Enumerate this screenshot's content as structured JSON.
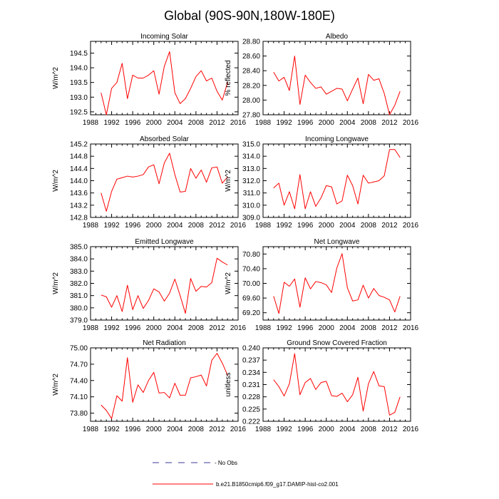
{
  "title": "Global (90S-90N,180W-180E)",
  "years": [
    1990,
    1991,
    1992,
    1993,
    1994,
    1995,
    1996,
    1997,
    1998,
    1999,
    2000,
    2001,
    2002,
    2003,
    2004,
    2005,
    2006,
    2007,
    2008,
    2009,
    2010,
    2011,
    2012,
    2013,
    2014
  ],
  "x_ticks": [
    1988,
    1992,
    1996,
    2000,
    2004,
    2008,
    2012,
    2016
  ],
  "legend": {
    "no_obs": "- No Obs",
    "no_obs_color": "#3a3a9a",
    "case": "b.e21.B1850cmip6.f09_g17.DAMIP-hist-co2.001",
    "case_color": "#ff0000"
  },
  "chart_data": [
    {
      "type": "line",
      "title": "Incoming Solar",
      "ylabel": "W/m^2",
      "xlim": [
        1988,
        2016
      ],
      "ylim": [
        192.4,
        194.9
      ],
      "yticks": [
        192.5,
        193.0,
        193.5,
        194.0,
        194.5
      ],
      "ytick_labels": [
        "192.5",
        "193.0",
        "193.5",
        "194.0",
        "194.5"
      ],
      "series": [
        {
          "color": "#ff0000",
          "values": [
            193.15,
            192.4,
            193.3,
            193.5,
            194.15,
            192.95,
            193.75,
            193.65,
            193.65,
            193.75,
            193.9,
            193.1,
            194.05,
            194.55,
            193.15,
            192.78,
            192.95,
            193.3,
            193.7,
            193.9,
            193.55,
            193.65,
            193.2,
            192.9,
            193.5
          ]
        }
      ]
    },
    {
      "type": "line",
      "title": "Albedo",
      "ylabel": "% reflected",
      "xlim": [
        1988,
        2016
      ],
      "ylim": [
        27.8,
        28.8
      ],
      "yticks": [
        27.8,
        28.0,
        28.2,
        28.4,
        28.6,
        28.8
      ],
      "ytick_labels": [
        "27.80",
        "28.00",
        "28.20",
        "28.40",
        "28.60",
        "28.80"
      ],
      "series": [
        {
          "color": "#ff0000",
          "values": [
            28.38,
            28.26,
            28.31,
            28.13,
            28.6,
            27.94,
            28.34,
            28.24,
            28.16,
            28.18,
            28.08,
            28.12,
            28.16,
            28.15,
            27.99,
            28.15,
            28.3,
            27.95,
            28.35,
            28.27,
            28.29,
            28.09,
            27.8,
            27.93,
            28.12
          ]
        }
      ]
    },
    {
      "type": "line",
      "title": "Absorbed Solar",
      "ylabel": "W/m^2",
      "xlim": [
        1988,
        2016
      ],
      "ylim": [
        142.8,
        145.2
      ],
      "yticks": [
        142.8,
        143.2,
        143.6,
        144.0,
        144.4,
        144.8,
        145.2
      ],
      "ytick_labels": [
        "142.8",
        "143.2",
        "143.6",
        "144.0",
        "144.4",
        "144.8",
        "145.2"
      ],
      "series": [
        {
          "color": "#ff0000",
          "values": [
            143.6,
            143.0,
            143.65,
            144.05,
            144.1,
            144.15,
            144.12,
            144.15,
            144.2,
            144.45,
            144.52,
            143.9,
            144.58,
            144.9,
            144.2,
            143.63,
            143.65,
            144.4,
            144.08,
            144.35,
            143.95,
            144.42,
            144.45,
            143.92,
            144.12
          ]
        }
      ]
    },
    {
      "type": "line",
      "title": "Incoming Longwave",
      "ylabel": "W/m^2",
      "xlim": [
        1988,
        2016
      ],
      "ylim": [
        309.0,
        315.0
      ],
      "yticks": [
        309,
        310,
        311,
        312,
        313,
        314,
        315
      ],
      "ytick_labels": [
        "309.0",
        "310.0",
        "311.0",
        "312.0",
        "313.0",
        "314.0",
        "315.0"
      ],
      "series": [
        {
          "color": "#ff0000",
          "values": [
            311.4,
            311.8,
            310.0,
            311.1,
            309.7,
            312.5,
            309.7,
            311.1,
            309.9,
            310.6,
            311.6,
            311.5,
            310.1,
            310.35,
            312.45,
            311.6,
            310.1,
            312.45,
            311.8,
            311.9,
            312.0,
            312.4,
            314.55,
            314.55,
            313.9
          ]
        }
      ]
    },
    {
      "type": "line",
      "title": "Emitted Longwave",
      "ylabel": "W/m^2",
      "xlim": [
        1988,
        2016
      ],
      "ylim": [
        379.0,
        385.0
      ],
      "yticks": [
        379,
        380,
        381,
        382,
        383,
        384,
        385
      ],
      "ytick_labels": [
        "379.0",
        "380.0",
        "381.0",
        "382.0",
        "383.0",
        "384.0",
        "385.0"
      ],
      "series": [
        {
          "color": "#ff0000",
          "values": [
            381.05,
            380.9,
            380.05,
            381.0,
            379.7,
            381.85,
            379.85,
            381.0,
            379.95,
            380.6,
            381.55,
            381.3,
            380.55,
            381.2,
            382.35,
            381.0,
            379.55,
            382.4,
            381.35,
            381.75,
            381.7,
            382.05,
            384.05,
            383.75,
            383.5
          ]
        }
      ]
    },
    {
      "type": "line",
      "title": "Net Longwave",
      "ylabel": "W/m^2",
      "xlim": [
        1988,
        2016
      ],
      "ylim": [
        69.0,
        71.0
      ],
      "yticks": [
        69.2,
        69.6,
        70.0,
        70.4,
        70.8
      ],
      "ytick_labels": [
        "69.20",
        "69.60",
        "70.00",
        "70.40",
        "70.80"
      ],
      "series": [
        {
          "color": "#ff0000",
          "values": [
            69.65,
            69.18,
            70.03,
            69.92,
            70.12,
            69.35,
            70.15,
            69.85,
            70.05,
            70.02,
            69.96,
            69.75,
            70.42,
            70.81,
            69.88,
            69.52,
            69.55,
            69.95,
            69.6,
            69.86,
            69.67,
            69.62,
            69.55,
            69.22,
            69.65
          ]
        }
      ]
    },
    {
      "type": "line",
      "title": "Net Radiation",
      "ylabel": "W/m^2",
      "xlim": [
        1988,
        2016
      ],
      "ylim": [
        73.65,
        75.0
      ],
      "yticks": [
        73.8,
        74.1,
        74.4,
        74.7,
        75.0
      ],
      "ytick_labels": [
        "73.80",
        "74.10",
        "74.40",
        "74.70",
        "75.00"
      ],
      "series": [
        {
          "color": "#ff0000",
          "values": [
            73.95,
            73.85,
            73.7,
            74.12,
            74.02,
            74.82,
            74.0,
            74.32,
            74.18,
            74.4,
            74.55,
            74.17,
            74.18,
            74.08,
            74.35,
            74.13,
            74.13,
            74.45,
            74.47,
            74.5,
            74.3,
            74.77,
            74.9,
            74.72,
            74.5
          ]
        }
      ]
    },
    {
      "type": "line",
      "title": "Ground Snow Covered Fraction",
      "ylabel": "unitless",
      "xlim": [
        1988,
        2016
      ],
      "ylim": [
        0.222,
        0.24
      ],
      "yticks": [
        0.222,
        0.225,
        0.228,
        0.231,
        0.234,
        0.237,
        0.24
      ],
      "ytick_labels": [
        "0.222",
        "0.225",
        "0.228",
        "0.231",
        "0.234",
        "0.237",
        "0.240"
      ],
      "series": [
        {
          "color": "#ff0000",
          "values": [
            0.2322,
            0.2305,
            0.2282,
            0.2312,
            0.2386,
            0.2285,
            0.2315,
            0.2325,
            0.2298,
            0.2315,
            0.2318,
            0.2283,
            0.2281,
            0.2289,
            0.2268,
            0.2285,
            0.2328,
            0.2245,
            0.2312,
            0.2342,
            0.2307,
            0.2305,
            0.2235,
            0.2242,
            0.228
          ]
        }
      ]
    }
  ]
}
